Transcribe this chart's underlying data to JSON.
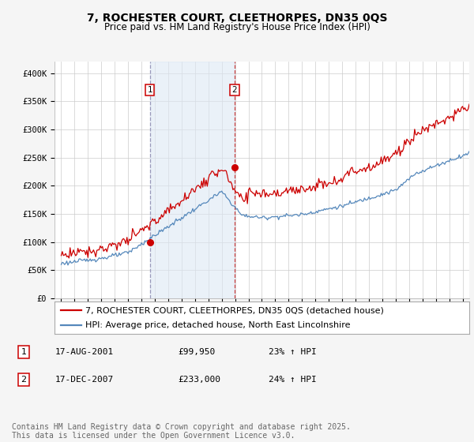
{
  "title": "7, ROCHESTER COURT, CLEETHORPES, DN35 0QS",
  "subtitle": "Price paid vs. HM Land Registry's House Price Index (HPI)",
  "ylabel_ticks": [
    "£0",
    "£50K",
    "£100K",
    "£150K",
    "£200K",
    "£250K",
    "£300K",
    "£350K",
    "£400K"
  ],
  "ytick_values": [
    0,
    50000,
    100000,
    150000,
    200000,
    250000,
    300000,
    350000,
    400000
  ],
  "ylim": [
    0,
    420000
  ],
  "xlim_start": 1994.5,
  "xlim_end": 2025.5,
  "hpi_line_color": "#5588bb",
  "price_color": "#cc0000",
  "shade_color": "#dde8f4",
  "shade_alpha": 0.6,
  "sale1_x": 2001.63,
  "sale1_y": 99950,
  "sale2_x": 2007.96,
  "sale2_y": 233000,
  "legend_line1": "7, ROCHESTER COURT, CLEETHORPES, DN35 0QS (detached house)",
  "legend_line2": "HPI: Average price, detached house, North East Lincolnshire",
  "sale1_date": "17-AUG-2001",
  "sale1_price": "£99,950",
  "sale1_hpi": "23% ↑ HPI",
  "sale2_date": "17-DEC-2007",
  "sale2_price": "£233,000",
  "sale2_hpi": "24% ↑ HPI",
  "footnote": "Contains HM Land Registry data © Crown copyright and database right 2025.\nThis data is licensed under the Open Government Licence v3.0.",
  "bg_color": "#f5f5f5",
  "plot_bg": "#ffffff",
  "title_fontsize": 10,
  "subtitle_fontsize": 8.5,
  "tick_fontsize": 7.5,
  "legend_fontsize": 8,
  "footnote_fontsize": 7
}
